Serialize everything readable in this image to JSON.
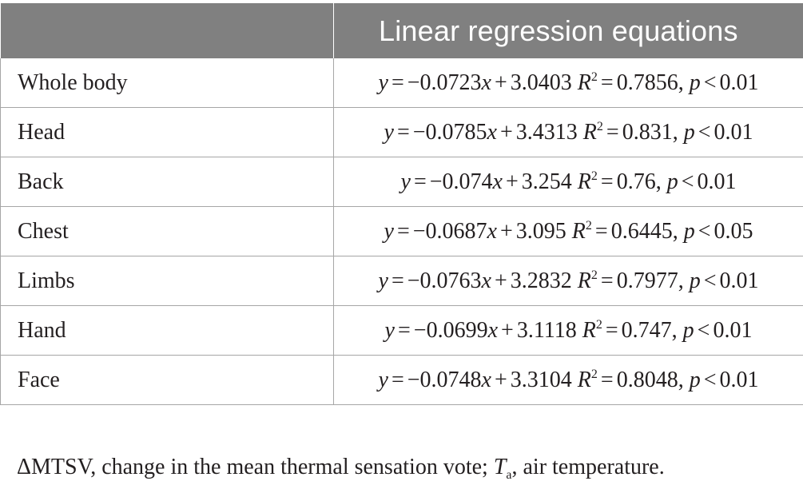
{
  "table": {
    "header": {
      "col1": "",
      "col2": "Linear regression equations"
    },
    "rows": [
      {
        "label": "Whole body",
        "slope": "−0.0723",
        "intercept": "3.0403",
        "r2": "0.7856",
        "p_op": "<",
        "p": "0.01"
      },
      {
        "label": "Head",
        "slope": "−0.0785",
        "intercept": "3.4313",
        "r2": "0.831",
        "p_op": "<",
        "p": "0.01"
      },
      {
        "label": "Back",
        "slope": "−0.074",
        "intercept": "3.254",
        "r2": "0.76",
        "p_op": "<",
        "p": "0.01"
      },
      {
        "label": "Chest",
        "slope": "−0.0687",
        "intercept": "3.095",
        "r2": "0.6445",
        "p_op": "<",
        "p": "0.05"
      },
      {
        "label": "Limbs",
        "slope": "−0.0763",
        "intercept": "3.2832",
        "r2": "0.7977",
        "p_op": "<",
        "p": "0.01"
      },
      {
        "label": "Hand",
        "slope": "−0.0699",
        "intercept": "3.1118",
        "r2": "0.747",
        "p_op": "<",
        "p": "0.01"
      },
      {
        "label": "Face",
        "slope": "−0.0748",
        "intercept": "3.3104",
        "r2": "0.8048",
        "p_op": "<",
        "p": "0.01"
      }
    ]
  },
  "equation_symbols": {
    "y": "y",
    "equals": "=",
    "x": "x",
    "plus": "+",
    "R": "R",
    "sup2": "2",
    "comma": ",",
    "p": "p"
  },
  "footnote": {
    "part1": "ΔMTSV, change in the mean thermal sensation vote; ",
    "T": "T",
    "sub": "a",
    "part2": ", air temperature."
  },
  "colors": {
    "header_bg": "#808080",
    "header_text": "#ffffff",
    "rule": "#a6a6a6",
    "text": "#231f20"
  }
}
